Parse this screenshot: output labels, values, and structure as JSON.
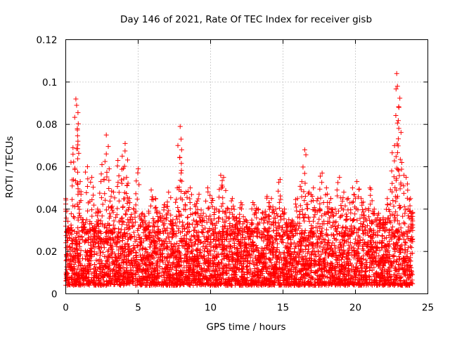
{
  "chart_data": {
    "type": "scatter",
    "title": "Day 146 of 2021, Rate Of TEC Index for receiver gisb",
    "xlabel": "GPS time / hours",
    "ylabel": "ROTI / TECUs",
    "xlim": [
      0,
      25
    ],
    "ylim": [
      0,
      0.12
    ],
    "x_ticks": [
      0,
      5,
      10,
      15,
      20,
      25
    ],
    "x_tick_labels": [
      "0",
      "5",
      "10",
      "15",
      "20",
      "25"
    ],
    "y_ticks": [
      0,
      0.02,
      0.04,
      0.06,
      0.08,
      0.1,
      0.12
    ],
    "y_tick_labels": [
      "0",
      "0.02",
      "0.04",
      "0.06",
      "0.08",
      "0.1",
      "0.12"
    ],
    "grid": true,
    "marker": "+",
    "marker_color": "#ff0000",
    "series": [
      {
        "name": "ROTI",
        "x": [
          0.0,
          0.3,
          0.5,
          0.7,
          0.75,
          0.8,
          1.0,
          1.2,
          1.5,
          1.8,
          2.0,
          2.2,
          2.5,
          2.8,
          3.0,
          3.3,
          3.6,
          3.9,
          4.1,
          4.2,
          4.4,
          4.7,
          5.0,
          5.3,
          5.6,
          5.9,
          6.2,
          6.5,
          6.8,
          7.1,
          7.4,
          7.7,
          7.9,
          8.0,
          8.3,
          8.6,
          8.9,
          9.2,
          9.5,
          9.8,
          10.1,
          10.4,
          10.7,
          10.9,
          11.2,
          11.5,
          11.8,
          12.1,
          12.4,
          12.7,
          13.0,
          13.3,
          13.6,
          13.9,
          14.2,
          14.5,
          14.8,
          15.1,
          15.4,
          15.7,
          16.0,
          16.3,
          16.5,
          16.8,
          17.1,
          17.4,
          17.7,
          18.0,
          18.3,
          18.6,
          18.9,
          19.2,
          19.5,
          19.8,
          20.1,
          20.4,
          20.7,
          21.0,
          21.3,
          21.6,
          21.9,
          22.2,
          22.5,
          22.7,
          22.85,
          22.9,
          23.0,
          23.2,
          23.5,
          23.8,
          23.95
        ],
        "y": [
          0.045,
          0.03,
          0.069,
          0.092,
          0.089,
          0.078,
          0.053,
          0.035,
          0.06,
          0.055,
          0.032,
          0.04,
          0.061,
          0.075,
          0.059,
          0.048,
          0.063,
          0.065,
          0.071,
          0.055,
          0.045,
          0.04,
          0.059,
          0.038,
          0.032,
          0.049,
          0.045,
          0.038,
          0.042,
          0.048,
          0.035,
          0.05,
          0.079,
          0.068,
          0.048,
          0.05,
          0.042,
          0.047,
          0.038,
          0.05,
          0.045,
          0.04,
          0.056,
          0.055,
          0.04,
          0.045,
          0.036,
          0.043,
          0.035,
          0.03,
          0.042,
          0.04,
          0.038,
          0.046,
          0.045,
          0.04,
          0.054,
          0.04,
          0.035,
          0.034,
          0.045,
          0.053,
          0.068,
          0.048,
          0.05,
          0.045,
          0.057,
          0.05,
          0.045,
          0.04,
          0.055,
          0.048,
          0.045,
          0.05,
          0.053,
          0.045,
          0.04,
          0.05,
          0.04,
          0.038,
          0.035,
          0.045,
          0.058,
          0.07,
          0.104,
          0.098,
          0.088,
          0.062,
          0.055,
          0.045,
          0.038
        ],
        "baseline_range": [
          0.004,
          0.03
        ]
      }
    ]
  }
}
